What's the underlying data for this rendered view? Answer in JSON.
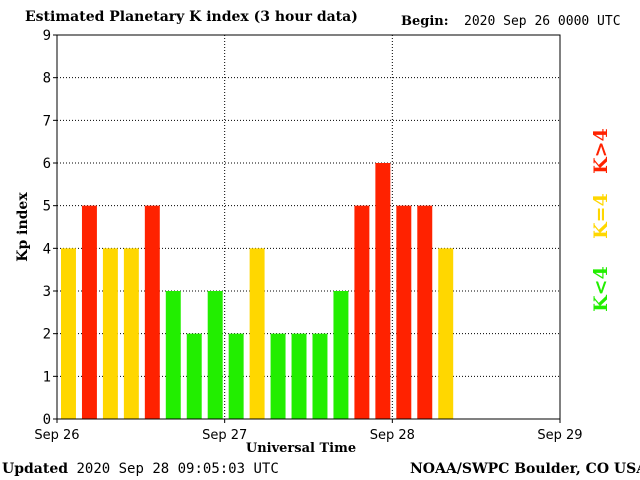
{
  "header": {
    "title": "Estimated Planetary K index (3 hour data)",
    "begin_label": "Begin:",
    "begin_value": "2020 Sep 26 0000 UTC"
  },
  "footer": {
    "updated_label": "Updated",
    "updated_value": "2020 Sep 28 09:05:03 UTC",
    "source": "NOAA/SWPC Boulder, CO USA"
  },
  "legend": {
    "high": {
      "label": "K>4",
      "color": "#ff2200"
    },
    "equal": {
      "label": "K=4",
      "color": "#ffd700"
    },
    "low": {
      "label": "K<4",
      "color": "#22ee00"
    }
  },
  "chart_data": {
    "type": "bar",
    "title": "Estimated Planetary K index (3 hour data)",
    "xlabel": "Universal Time",
    "ylabel": "Kp index",
    "ylim": [
      0,
      9
    ],
    "yticks": [
      0,
      1,
      2,
      3,
      4,
      5,
      6,
      7,
      8,
      9
    ],
    "x_tick_labels": [
      "Sep 26",
      "Sep 27",
      "Sep 28",
      "Sep 29"
    ],
    "bars_per_day": 8,
    "grid": true,
    "values": [
      4,
      5,
      4,
      4,
      5,
      3,
      2,
      3,
      2,
      4,
      2,
      2,
      2,
      3,
      5,
      6,
      5,
      5,
      4
    ],
    "colors": {
      "low": "#22ee00",
      "equal": "#ffd700",
      "high": "#ff2200"
    }
  }
}
